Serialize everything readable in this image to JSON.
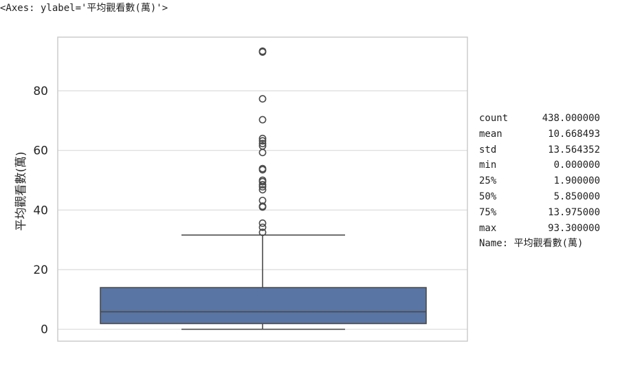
{
  "repr": "<Axes: ylabel='平均觀看數(萬)'>",
  "chart_data": {
    "type": "box",
    "ylabel": "平均觀看數(萬)",
    "ylim": [
      -4,
      98
    ],
    "yticks": [
      0,
      20,
      40,
      60,
      80
    ],
    "grid": true,
    "box": {
      "min": 0.0,
      "q1": 1.9,
      "median": 5.85,
      "q3": 13.975,
      "whisker_low": 0.0,
      "whisker_high": 31.6
    },
    "outliers": [
      32.5,
      34.2,
      35.6,
      41.0,
      41.3,
      43.2,
      46.8,
      47.8,
      48.5,
      49.5,
      50.0,
      53.5,
      53.9,
      59.3,
      61.5,
      62.3,
      63.2,
      64.0,
      70.3,
      77.3,
      93.0,
      93.3
    ],
    "color": "#5975a4",
    "line_color": "#4a4a4a"
  },
  "stats": [
    {
      "key": "count",
      "value": "438.000000"
    },
    {
      "key": "mean",
      "value": "10.668493"
    },
    {
      "key": "std",
      "value": "13.564352"
    },
    {
      "key": "min",
      "value": "0.000000"
    },
    {
      "key": "25%",
      "value": "1.900000"
    },
    {
      "key": "50%",
      "value": "5.850000"
    },
    {
      "key": "75%",
      "value": "13.975000"
    },
    {
      "key": "max",
      "value": "93.300000"
    }
  ],
  "name_line": "Name: 平均觀看數(萬)"
}
